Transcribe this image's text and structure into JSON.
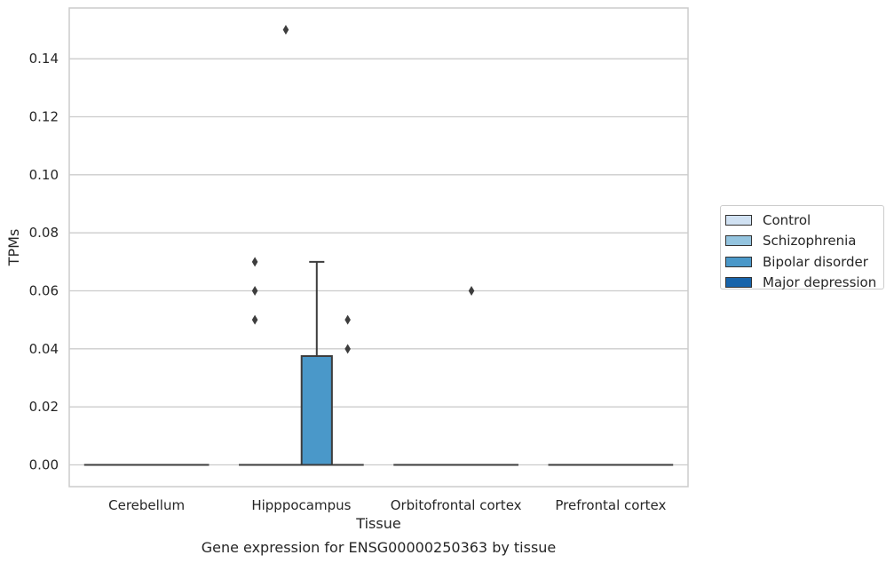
{
  "chart_data": {
    "type": "box",
    "title": "Gene expression for ENSG00000250363 by tissue",
    "xlabel": "Tissue",
    "ylabel": "TPMs",
    "ylim": [
      -0.0075,
      0.1575
    ],
    "yticks": [
      0.0,
      0.02,
      0.04,
      0.06,
      0.08,
      0.1,
      0.12,
      0.14
    ],
    "ytick_labels": [
      "0.00",
      "0.02",
      "0.04",
      "0.06",
      "0.08",
      "0.10",
      "0.12",
      "0.14"
    ],
    "grid": true,
    "legend_position": "right",
    "categories": [
      "Cerebellum",
      "Hipppocampus",
      "Orbitofrontal cortex",
      "Prefrontal cortex"
    ],
    "series": [
      {
        "name": "Control",
        "color": "#d0e1f2",
        "boxes": [
          {
            "q1": 0,
            "median": 0,
            "q3": 0,
            "whisker_low": 0,
            "whisker_high": 0,
            "outliers": []
          },
          {
            "q1": 0,
            "median": 0,
            "q3": 0,
            "whisker_low": 0,
            "whisker_high": 0,
            "outliers": [
              0.05,
              0.06,
              0.07
            ]
          },
          {
            "q1": 0,
            "median": 0,
            "q3": 0,
            "whisker_low": 0,
            "whisker_high": 0,
            "outliers": []
          },
          {
            "q1": 0,
            "median": 0,
            "q3": 0,
            "whisker_low": 0,
            "whisker_high": 0,
            "outliers": []
          }
        ]
      },
      {
        "name": "Schizophrenia",
        "color": "#94c4df",
        "boxes": [
          {
            "q1": 0,
            "median": 0,
            "q3": 0,
            "whisker_low": 0,
            "whisker_high": 0,
            "outliers": []
          },
          {
            "q1": 0,
            "median": 0,
            "q3": 0,
            "whisker_low": 0,
            "whisker_high": 0,
            "outliers": [
              0.15
            ]
          },
          {
            "q1": 0,
            "median": 0,
            "q3": 0,
            "whisker_low": 0,
            "whisker_high": 0,
            "outliers": []
          },
          {
            "q1": 0,
            "median": 0,
            "q3": 0,
            "whisker_low": 0,
            "whisker_high": 0,
            "outliers": []
          }
        ]
      },
      {
        "name": "Bipolar disorder",
        "color": "#4a98c9",
        "boxes": [
          {
            "q1": 0,
            "median": 0,
            "q3": 0,
            "whisker_low": 0,
            "whisker_high": 0,
            "outliers": []
          },
          {
            "q1": 0,
            "median": 0,
            "q3": 0.0375,
            "whisker_low": 0,
            "whisker_high": 0.07,
            "outliers": []
          },
          {
            "q1": 0,
            "median": 0,
            "q3": 0,
            "whisker_low": 0,
            "whisker_high": 0,
            "outliers": [
              0.06
            ]
          },
          {
            "q1": 0,
            "median": 0,
            "q3": 0,
            "whisker_low": 0,
            "whisker_high": 0,
            "outliers": []
          }
        ]
      },
      {
        "name": "Major depression",
        "color": "#1764ab",
        "boxes": [
          {
            "q1": 0,
            "median": 0,
            "q3": 0,
            "whisker_low": 0,
            "whisker_high": 0,
            "outliers": []
          },
          {
            "q1": 0,
            "median": 0,
            "q3": 0,
            "whisker_low": 0,
            "whisker_high": 0,
            "outliers": [
              0.04,
              0.05
            ]
          },
          {
            "q1": 0,
            "median": 0,
            "q3": 0,
            "whisker_low": 0,
            "whisker_high": 0,
            "outliers": []
          },
          {
            "q1": 0,
            "median": 0,
            "q3": 0,
            "whisker_low": 0,
            "whisker_high": 0,
            "outliers": []
          }
        ]
      }
    ]
  }
}
